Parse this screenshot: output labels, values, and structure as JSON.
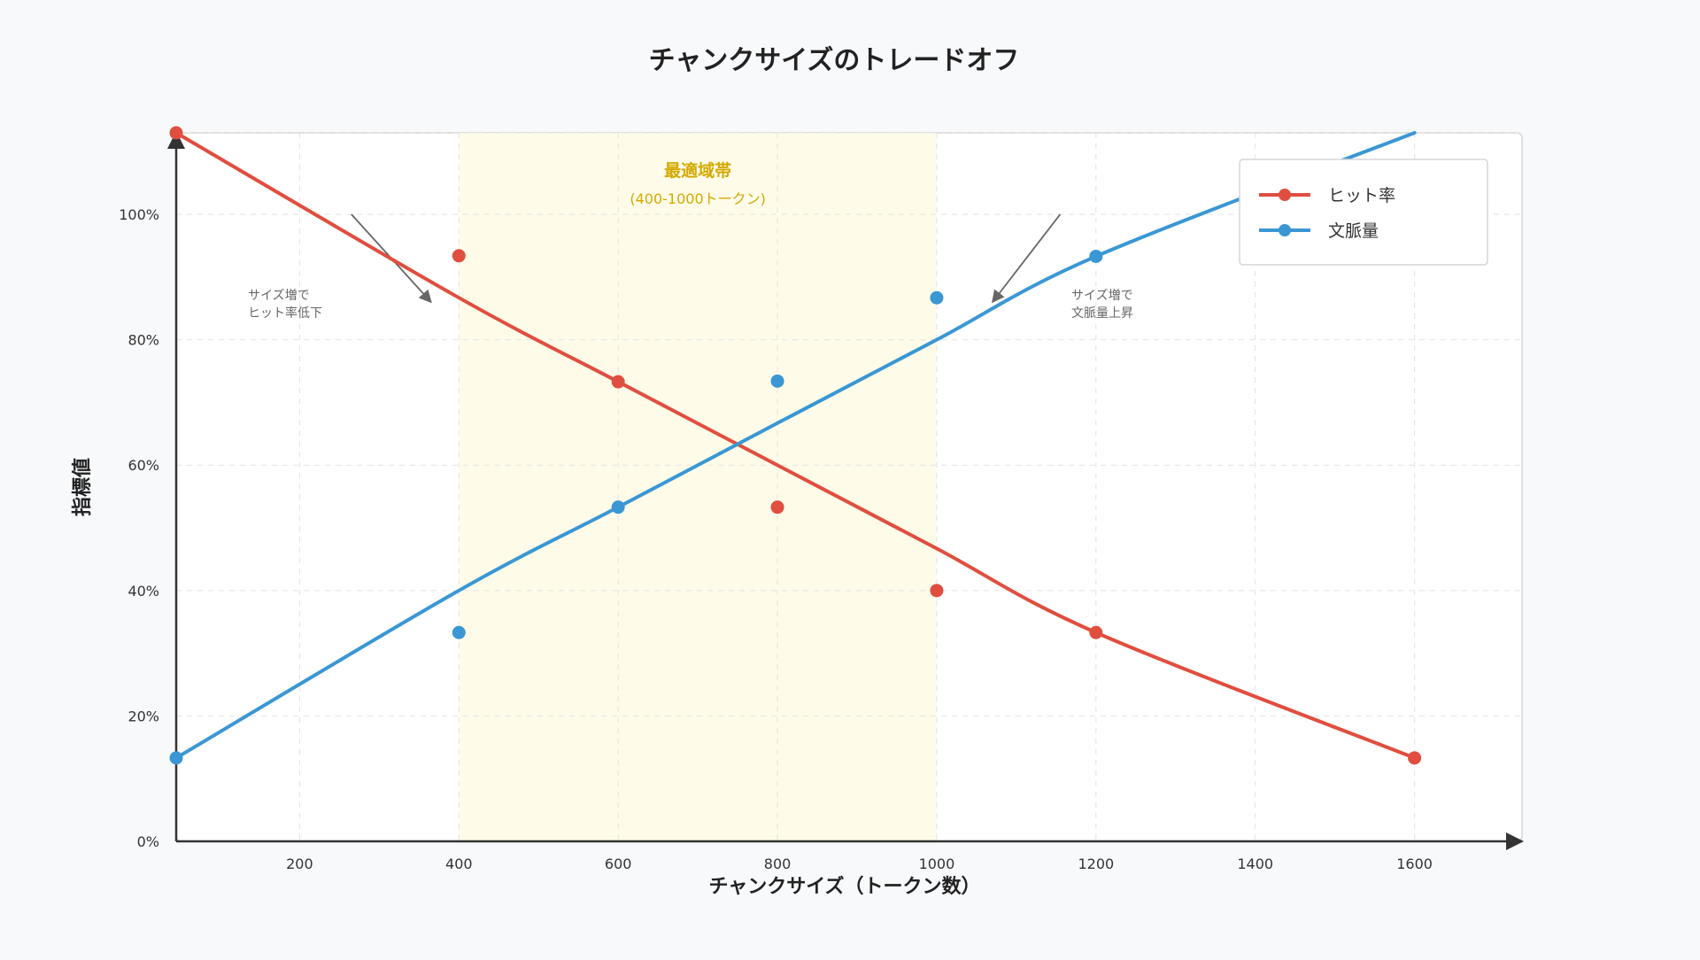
{
  "chart_data": {
    "type": "line",
    "title": "チャンクサイズのトレードオフ",
    "xlabel": "チャンクサイズ（トークン数）",
    "ylabel": "指標値",
    "x_ticks": [
      200,
      400,
      600,
      800,
      1000,
      1200,
      1400,
      1600
    ],
    "x_tick_labels": [
      "200",
      "400",
      "600",
      "800",
      "1000",
      "1200",
      "1400",
      "1600"
    ],
    "y_ticks": [
      0,
      20,
      40,
      60,
      80,
      100
    ],
    "y_tick_labels": [
      "0%",
      "20%",
      "40%",
      "60%",
      "80%",
      "100%"
    ],
    "xlim": [
      45,
      1735
    ],
    "ylim": [
      0,
      113
    ],
    "grid": true,
    "legend_position": "top-right",
    "series": [
      {
        "name": "ヒット率",
        "color": "#e04e3f",
        "points": [
          {
            "x": 45,
            "y": 113
          },
          {
            "x": 400,
            "y": 86.7
          },
          {
            "x": 600,
            "y": 73.3
          },
          {
            "x": 800,
            "y": 60
          },
          {
            "x": 1000,
            "y": 46.7
          },
          {
            "x": 1200,
            "y": 33.3
          },
          {
            "x": 1600,
            "y": 13.3
          }
        ]
      },
      {
        "name": "文脈量",
        "color": "#3a97d4",
        "points": [
          {
            "x": 45,
            "y": 13.3
          },
          {
            "x": 400,
            "y": 40
          },
          {
            "x": 600,
            "y": 53.3
          },
          {
            "x": 800,
            "y": 66.7
          },
          {
            "x": 1000,
            "y": 80
          },
          {
            "x": 1200,
            "y": 93.3
          },
          {
            "x": 1600,
            "y": 113
          }
        ]
      }
    ],
    "optimal_zone": {
      "title": "最適域帯",
      "subtitle": "(400-1000トークン)",
      "x_range": [
        400,
        1000
      ],
      "text_color": "#d4a900",
      "fill_color": "#fefce8"
    },
    "annotations": [
      {
        "lines": [
          "サイズ増で",
          "ヒット率低下"
        ],
        "arrow_from": {
          "x": 265,
          "y": 100
        },
        "arrow_to": {
          "x": 365,
          "y": 86
        }
      },
      {
        "lines": [
          "サイズ増で",
          "文脈量上昇"
        ],
        "arrow_from": {
          "x": 1155,
          "y": 100
        },
        "arrow_to": {
          "x": 1070,
          "y": 86
        }
      }
    ]
  }
}
